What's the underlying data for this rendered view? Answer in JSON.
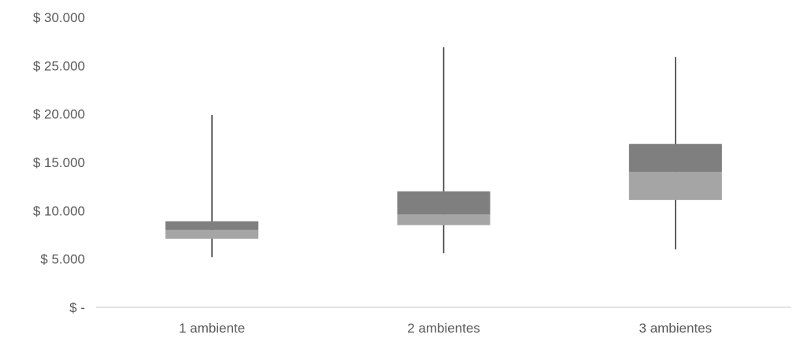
{
  "chart_data": {
    "type": "box",
    "title": "",
    "xlabel": "",
    "ylabel": "",
    "ylim": [
      0,
      30000
    ],
    "y_ticks": [
      0,
      5000,
      10000,
      15000,
      20000,
      25000,
      30000
    ],
    "y_tick_labels": [
      "$ -",
      "$ 5.000",
      "$ 10.000",
      "$ 15.000",
      "$ 20.000",
      "$ 25.000",
      "$ 30.000"
    ],
    "categories": [
      "1 ambiente",
      "2 ambientes",
      "3 ambientes"
    ],
    "boxes": [
      {
        "min": 5200,
        "q1": 7100,
        "median": 8000,
        "q3": 8900,
        "max": 19900
      },
      {
        "min": 5600,
        "q1": 8500,
        "median": 9600,
        "q3": 12000,
        "max": 26900
      },
      {
        "min": 6000,
        "q1": 11100,
        "median": 14000,
        "q3": 16900,
        "max": 25900
      }
    ],
    "grid": false,
    "colors": {
      "lower_box": "#a5a5a5",
      "upper_box": "#7f7f7f",
      "whisker": "#404040",
      "axis": "#d9d9d9"
    }
  }
}
